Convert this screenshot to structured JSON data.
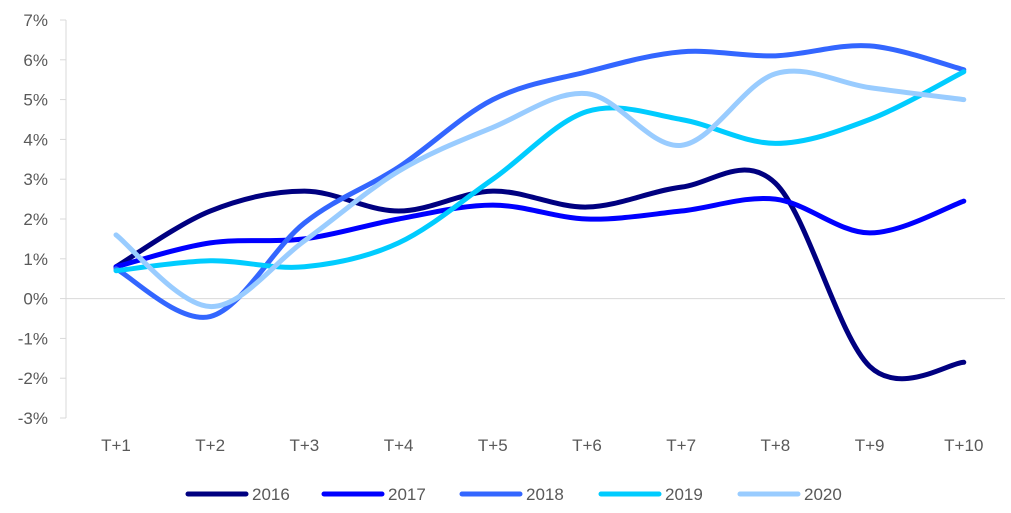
{
  "chart_data": {
    "type": "line",
    "categories": [
      "T+1",
      "T+2",
      "T+3",
      "T+4",
      "T+5",
      "T+6",
      "T+7",
      "T+8",
      "T+9",
      "T+10"
    ],
    "y_tick_labels": [
      "-3%",
      "-2%",
      "-1%",
      "0%",
      "1%",
      "2%",
      "3%",
      "4%",
      "5%",
      "6%",
      "7%"
    ],
    "ylim": [
      -3,
      7
    ],
    "y_unit": "%",
    "grid": false,
    "smooth": true,
    "legend_position": "bottom",
    "series": [
      {
        "name": "2016",
        "color": "#000080",
        "values": [
          0.8,
          2.2,
          2.7,
          2.2,
          2.7,
          2.3,
          2.8,
          2.9,
          -1.7,
          -1.6
        ]
      },
      {
        "name": "2017",
        "color": "#0000FF",
        "values": [
          0.8,
          1.4,
          1.5,
          2.0,
          2.35,
          2.0,
          2.2,
          2.5,
          1.65,
          2.45
        ]
      },
      {
        "name": "2018",
        "color": "#3366FF",
        "values": [
          0.75,
          -0.45,
          1.9,
          3.3,
          5.0,
          5.7,
          6.2,
          6.1,
          6.35,
          5.75
        ]
      },
      {
        "name": "2019",
        "color": "#00CCFF",
        "values": [
          0.7,
          0.95,
          0.8,
          1.4,
          3.0,
          4.7,
          4.5,
          3.9,
          4.5,
          5.7
        ]
      },
      {
        "name": "2020",
        "color": "#99CCFF",
        "values": [
          1.6,
          -0.2,
          1.45,
          3.2,
          4.3,
          5.15,
          3.85,
          5.65,
          5.3,
          5.0
        ]
      }
    ]
  }
}
